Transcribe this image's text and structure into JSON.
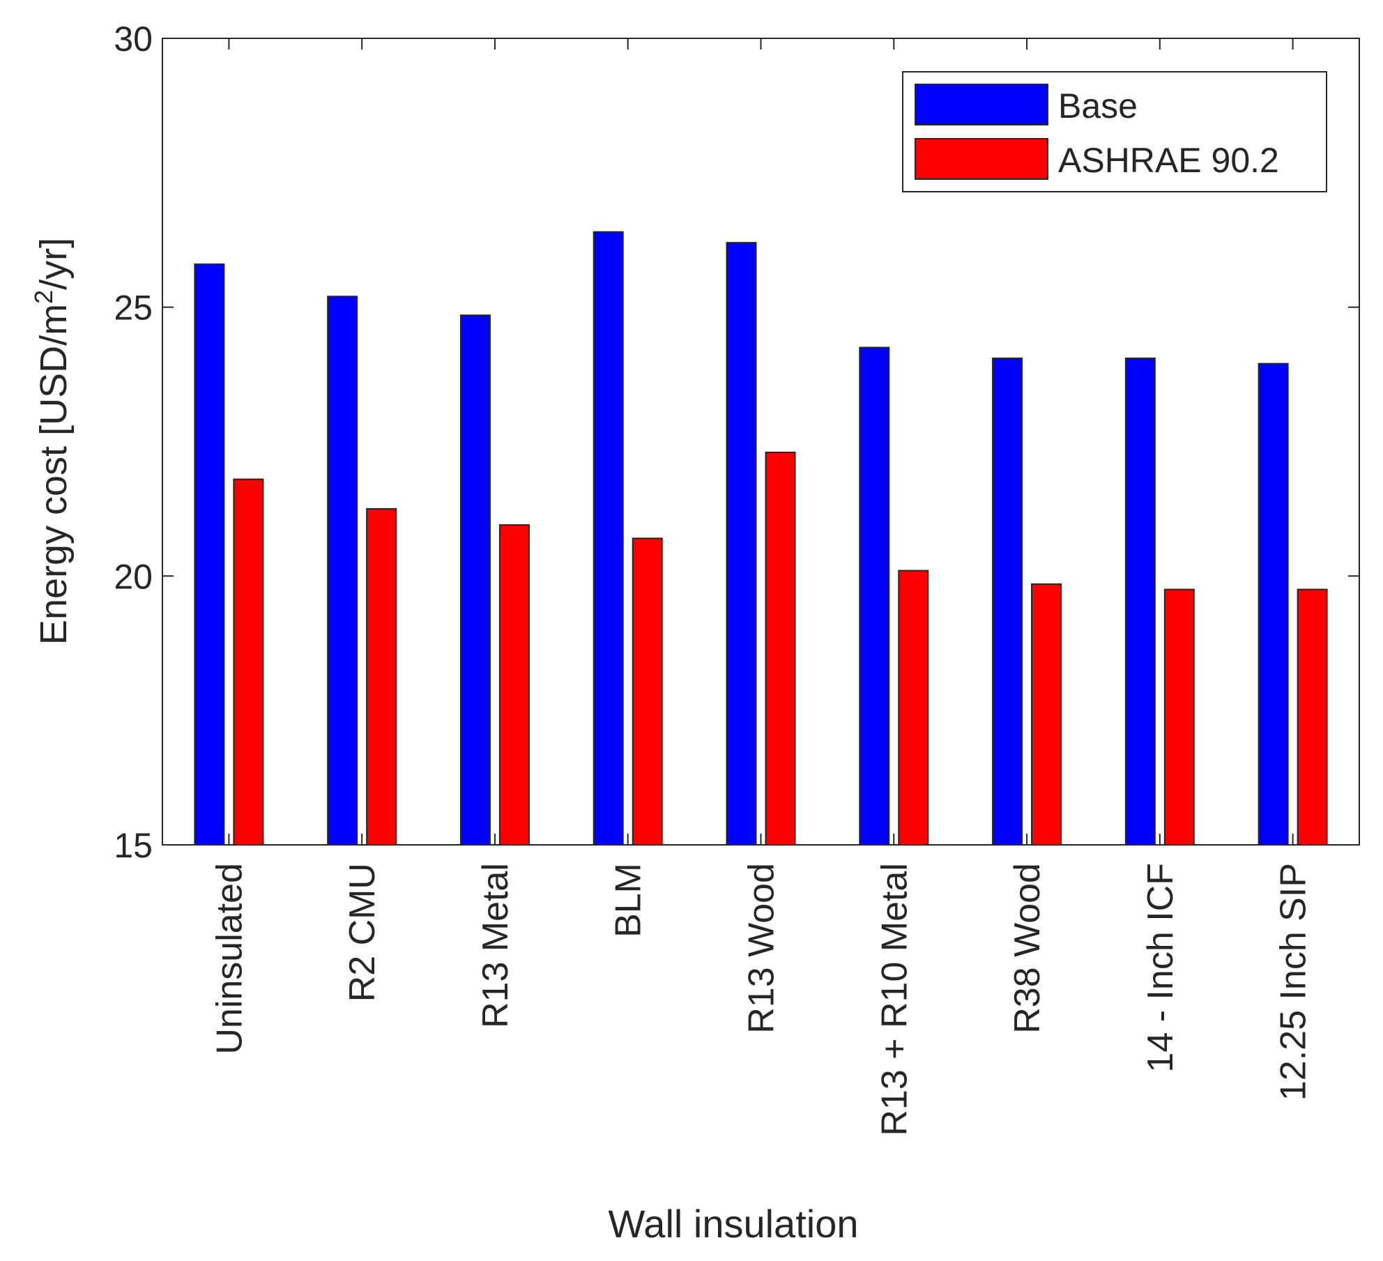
{
  "chart_data": {
    "type": "bar",
    "title": "",
    "xlabel": "Wall insulation",
    "ylabel_main": "Energy cost [USD/m",
    "ylabel_sup": "2",
    "ylabel_tail": "/yr]",
    "ylim": [
      15,
      30
    ],
    "yticks": [
      "15",
      "20",
      "25",
      "30"
    ],
    "grid": false,
    "legend_position": "top-right",
    "categories": [
      "Uninsulated",
      "R2 CMU",
      "R13 Metal",
      "BLM",
      "R13 Wood",
      "R13 + R10 Metal",
      "R38 Wood",
      "14 - Inch ICF",
      "12.25 Inch SIP"
    ],
    "series": [
      {
        "name": "Base",
        "color": "#0000ff",
        "values": [
          25.8,
          25.2,
          24.85,
          26.4,
          26.2,
          24.25,
          24.05,
          24.05,
          23.95
        ]
      },
      {
        "name": "ASHRAE 90.2",
        "color": "#ff0000",
        "values": [
          21.8,
          21.25,
          20.95,
          20.7,
          22.3,
          20.1,
          19.85,
          19.75,
          19.75
        ]
      }
    ]
  }
}
